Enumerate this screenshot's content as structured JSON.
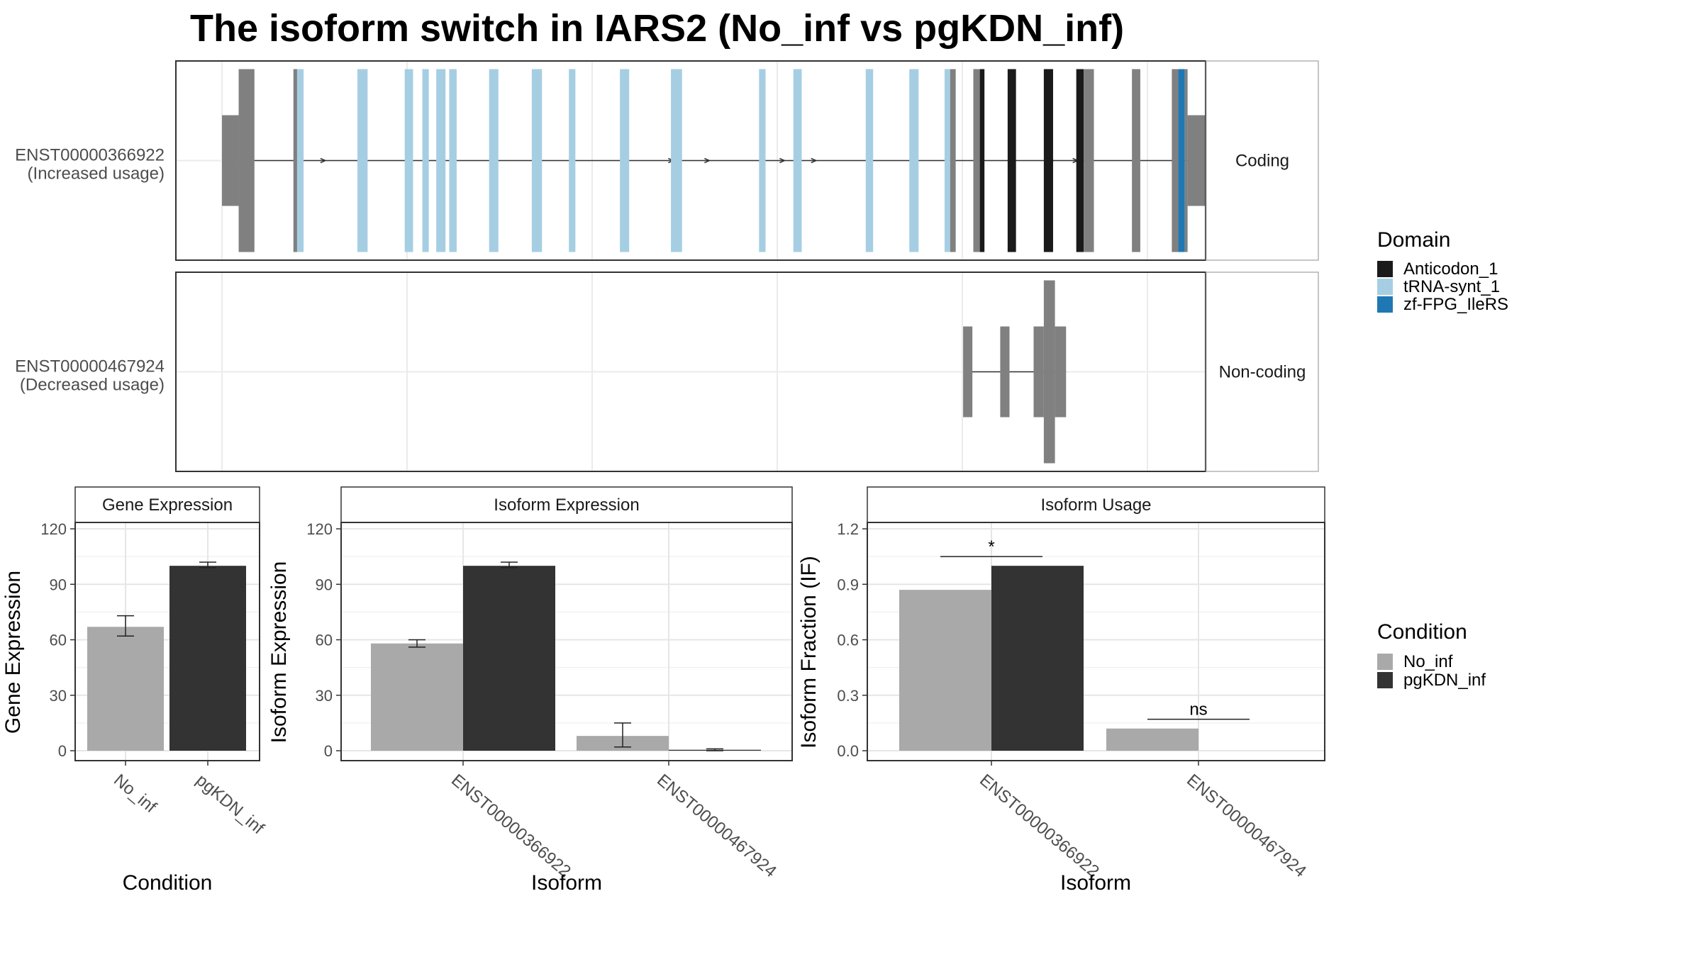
{
  "title": "The isoform switch in IARS2 (No_inf vs pgKDN_inf)",
  "colors": {
    "Anticodon_1": "#1a1a1a",
    "tRNA-synt_1": "#a6cee3",
    "zf-FPG_IleRS": "#1f78b4",
    "utr_exon": "#808080",
    "No_inf": "#a9a9a9",
    "pgKDN_inf": "#333333"
  },
  "transcripts": [
    {
      "id": "ENST00000366922",
      "usage": "(Increased usage)",
      "strip": "Coding",
      "exons": [
        {
          "start": 0.0,
          "end": 0.018,
          "type": "utr"
        },
        {
          "start": 0.018,
          "end": 0.035,
          "type": "cds"
        },
        {
          "start": 0.077,
          "end": 0.081,
          "type": "cds"
        },
        {
          "start": 0.081,
          "end": 0.088,
          "domain": "tRNA-synt_1"
        },
        {
          "start": 0.146,
          "end": 0.157,
          "domain": "tRNA-synt_1"
        },
        {
          "start": 0.197,
          "end": 0.206,
          "domain": "tRNA-synt_1"
        },
        {
          "start": 0.216,
          "end": 0.223,
          "domain": "tRNA-synt_1"
        },
        {
          "start": 0.231,
          "end": 0.241,
          "domain": "tRNA-synt_1"
        },
        {
          "start": 0.245,
          "end": 0.253,
          "domain": "tRNA-synt_1"
        },
        {
          "start": 0.288,
          "end": 0.298,
          "domain": "tRNA-synt_1"
        },
        {
          "start": 0.334,
          "end": 0.345,
          "domain": "tRNA-synt_1"
        },
        {
          "start": 0.374,
          "end": 0.381,
          "domain": "tRNA-synt_1"
        },
        {
          "start": 0.429,
          "end": 0.439,
          "domain": "tRNA-synt_1"
        },
        {
          "start": 0.484,
          "end": 0.496,
          "domain": "tRNA-synt_1"
        },
        {
          "start": 0.579,
          "end": 0.586,
          "domain": "tRNA-synt_1"
        },
        {
          "start": 0.616,
          "end": 0.625,
          "domain": "tRNA-synt_1"
        },
        {
          "start": 0.694,
          "end": 0.702,
          "domain": "tRNA-synt_1"
        },
        {
          "start": 0.741,
          "end": 0.751,
          "domain": "tRNA-synt_1"
        },
        {
          "start": 0.779,
          "end": 0.785,
          "domain": "tRNA-synt_1"
        },
        {
          "start": 0.785,
          "end": 0.791,
          "type": "cds"
        },
        {
          "start": 0.81,
          "end": 0.817,
          "type": "cds"
        },
        {
          "start": 0.817,
          "end": 0.822,
          "domain": "Anticodon_1"
        },
        {
          "start": 0.847,
          "end": 0.856,
          "domain": "Anticodon_1"
        },
        {
          "start": 0.886,
          "end": 0.896,
          "domain": "Anticodon_1"
        },
        {
          "start": 0.921,
          "end": 0.929,
          "domain": "Anticodon_1"
        },
        {
          "start": 0.929,
          "end": 0.94,
          "type": "cds"
        },
        {
          "start": 0.981,
          "end": 0.99,
          "type": "cds"
        },
        {
          "start": 1.024,
          "end": 1.031,
          "type": "cds"
        },
        {
          "start": 1.031,
          "end": 1.038,
          "domain": "zf-FPG_IleRS"
        },
        {
          "start": 1.038,
          "end": 1.041,
          "type": "cds"
        },
        {
          "start": 1.041,
          "end": 1.06,
          "type": "utr"
        }
      ],
      "arrows": [
        0.085,
        0.11,
        0.485,
        0.524,
        0.605,
        0.639,
        0.895,
        0.921
      ]
    },
    {
      "id": "ENST00000467924",
      "usage": "(Decreased usage)",
      "strip": "Non-coding",
      "exons": [
        {
          "start": 0.799,
          "end": 0.809,
          "type": "utr"
        },
        {
          "start": 0.839,
          "end": 0.849,
          "type": "utr"
        },
        {
          "start": 0.875,
          "end": 0.886,
          "type": "utr"
        },
        {
          "start": 0.886,
          "end": 0.898,
          "type": "cds"
        },
        {
          "start": 0.898,
          "end": 0.91,
          "type": "utr"
        }
      ],
      "arrows": []
    }
  ],
  "domain_legend": {
    "title": "Domain",
    "entries": [
      "Anticodon_1",
      "tRNA-synt_1",
      "zf-FPG_IleRS"
    ]
  },
  "condition_legend": {
    "title": "Condition",
    "entries": [
      "No_inf",
      "pgKDN_inf"
    ]
  },
  "chart_data": [
    {
      "type": "bar",
      "title": "Gene Expression",
      "xlabel": "Condition",
      "ylabel": "Gene Expression",
      "ylim": [
        0,
        120
      ],
      "yticks": [
        "0",
        "30",
        "60",
        "90",
        "120"
      ],
      "categories": [
        "No_inf",
        "pgKDN_inf"
      ],
      "values": [
        67,
        100
      ],
      "errors": [
        [
          62,
          73
        ],
        [
          99,
          102
        ]
      ]
    },
    {
      "type": "bar",
      "title": "Isoform Expression",
      "xlabel": "Isoform",
      "ylabel": "Isoform Expression",
      "ylim": [
        0,
        120
      ],
      "yticks": [
        "0",
        "30",
        "60",
        "90",
        "120"
      ],
      "categories": [
        "ENST00000366922",
        "ENST00000467924"
      ],
      "series": [
        {
          "name": "No_inf",
          "values": [
            58,
            8
          ],
          "errors": [
            [
              56,
              60
            ],
            [
              2,
              15
            ]
          ]
        },
        {
          "name": "pgKDN_inf",
          "values": [
            100,
            0.5
          ],
          "errors": [
            [
              99,
              102
            ],
            [
              0,
              1
            ]
          ]
        }
      ]
    },
    {
      "type": "bar",
      "title": "Isoform Usage",
      "xlabel": "Isoform",
      "ylabel": "Isoform Fraction (IF)",
      "ylim": [
        0,
        1.2
      ],
      "yticks": [
        "0.0",
        "0.3",
        "0.6",
        "0.9",
        "1.2"
      ],
      "categories": [
        "ENST00000366922",
        "ENST00000467924"
      ],
      "series": [
        {
          "name": "No_inf",
          "values": [
            0.87,
            0.12
          ]
        },
        {
          "name": "pgKDN_inf",
          "values": [
            1.0,
            0.0
          ]
        }
      ],
      "significance": [
        {
          "label": "*",
          "y": 1.05
        },
        {
          "label": "ns",
          "y": 0.17
        }
      ]
    }
  ]
}
